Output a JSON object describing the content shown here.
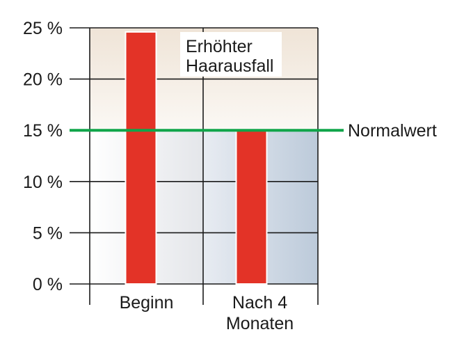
{
  "chart_data": {
    "type": "bar",
    "categories": [
      "Beginn",
      "Nach 4\nMonaten"
    ],
    "values": [
      24.6,
      15.0
    ],
    "ylim": [
      0,
      25
    ],
    "y_ticks": [
      0,
      5,
      10,
      15,
      20,
      25
    ],
    "y_tick_labels": [
      "0 %",
      "5 %",
      "10 %",
      "15 %",
      "20 %",
      "25 %"
    ],
    "reference_line": {
      "value": 15,
      "label": "Normalwert"
    },
    "upper_zone": {
      "from": 15,
      "to": 25,
      "label": "Erhöhter\nHaarausfall"
    },
    "grid": true,
    "colors": {
      "bar": "#e33327",
      "bar_edge": "#ffffff",
      "reference_line": "#10a54a",
      "upper_zone": "#efe4d7",
      "lower_zone": "#c5d0de",
      "axis": "#1a1a1a"
    }
  }
}
